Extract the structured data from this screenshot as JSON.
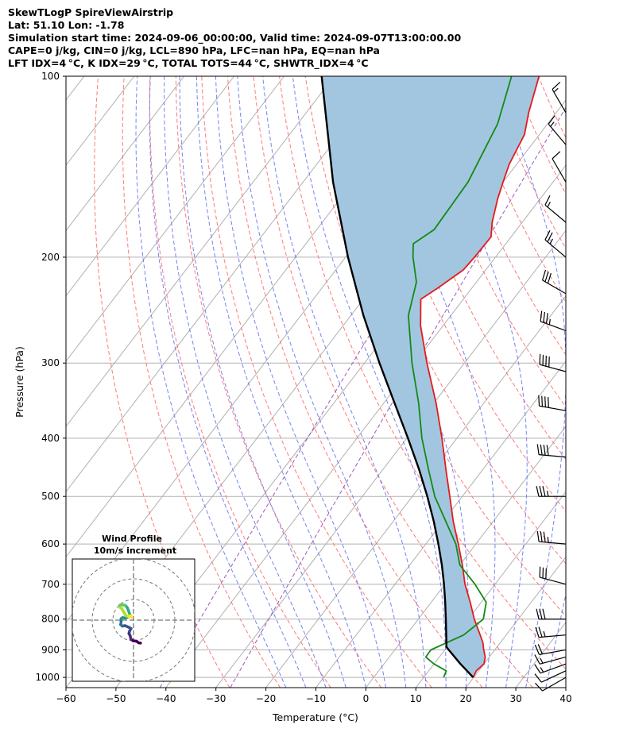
{
  "title_lines": [
    "SkewTLogP SpireViewAirstrip",
    "Lat: 51.10   Lon: -1.78",
    "Simulation start time: 2024-09-06_00:00:00, Valid time: 2024-09-07T13:00:00.00",
    "CAPE=0 j/kg, CIN=0 j/kg, LCL=890 hPa, LFC=nan hPa, EQ=nan hPa",
    "LFT IDX=4 °C, K IDX=29 °C, TOTAL TOTS=44 °C, SHWTR_IDX=4 °C"
  ],
  "chart_data": [
    {
      "type": "line",
      "subtype": "skew-t log-p",
      "xlabel": "Temperature (°C)",
      "ylabel": "Pressure (hPa)",
      "xlim": [
        -60,
        40
      ],
      "ylim": [
        1040,
        100
      ],
      "x_ticks": [
        -60,
        -50,
        -40,
        -30,
        -20,
        -10,
        0,
        10,
        20,
        30,
        40
      ],
      "x_tick_labels": [
        "−60",
        "−50",
        "−40",
        "−30",
        "−20",
        "−10",
        "0",
        "10",
        "20",
        "30",
        "40"
      ],
      "y_ticks": [
        1000,
        900,
        800,
        700,
        600,
        500,
        400,
        300,
        200,
        100
      ],
      "y_tick_labels": [
        "1000",
        "900",
        "800",
        "700",
        "600",
        "500",
        "400",
        "300",
        "200",
        "100"
      ],
      "grid": true,
      "colors": {
        "temperature": "#e41a1c",
        "dewpoint": "#138a13",
        "parcel": "#000000",
        "fill": "#a3c6e0",
        "dry_adiabat": "#ff6a6a",
        "moist_adiabat": "#6677ee",
        "mixing_ratio": "#9b59b6",
        "isotherm": "#b0b0b0"
      },
      "series": [
        {
          "name": "Temperature",
          "points": [
            {
              "p": 1000,
              "t": 19.9
            },
            {
              "p": 975,
              "t": 19.5
            },
            {
              "p": 950,
              "t": 20.0
            },
            {
              "p": 925,
              "t": 19.2
            },
            {
              "p": 900,
              "t": 17.8
            },
            {
              "p": 875,
              "t": 16.5
            },
            {
              "p": 850,
              "t": 14.8
            },
            {
              "p": 800,
              "t": 11.2
            },
            {
              "p": 750,
              "t": 7.8
            },
            {
              "p": 700,
              "t": 4.0
            },
            {
              "p": 650,
              "t": 0.5
            },
            {
              "p": 600,
              "t": -3.5
            },
            {
              "p": 550,
              "t": -8.0
            },
            {
              "p": 500,
              "t": -12.5
            },
            {
              "p": 450,
              "t": -17.5
            },
            {
              "p": 400,
              "t": -23.0
            },
            {
              "p": 350,
              "t": -29.5
            },
            {
              "p": 300,
              "t": -37.5
            },
            {
              "p": 260,
              "t": -44.5
            },
            {
              "p": 235,
              "t": -48.5
            },
            {
              "p": 225,
              "t": -46.8
            },
            {
              "p": 210,
              "t": -44.5
            },
            {
              "p": 200,
              "t": -44.2
            },
            {
              "p": 185,
              "t": -44.0
            },
            {
              "p": 175,
              "t": -46.0
            },
            {
              "p": 160,
              "t": -48.5
            },
            {
              "p": 150,
              "t": -50.0
            },
            {
              "p": 140,
              "t": -51.5
            },
            {
              "p": 125,
              "t": -53.0
            },
            {
              "p": 115,
              "t": -55.5
            },
            {
              "p": 100,
              "t": -59.0
            }
          ]
        },
        {
          "name": "Dewpoint",
          "points": [
            {
              "p": 1000,
              "t": 14.0
            },
            {
              "p": 975,
              "t": 13.5
            },
            {
              "p": 950,
              "t": 10.0
            },
            {
              "p": 925,
              "t": 7.3
            },
            {
              "p": 900,
              "t": 7.2
            },
            {
              "p": 850,
              "t": 11.5
            },
            {
              "p": 800,
              "t": 13.0
            },
            {
              "p": 750,
              "t": 11.0
            },
            {
              "p": 700,
              "t": 6.0
            },
            {
              "p": 650,
              "t": 0.0
            },
            {
              "p": 600,
              "t": -4.0
            },
            {
              "p": 550,
              "t": -9.5
            },
            {
              "p": 500,
              "t": -15.5
            },
            {
              "p": 450,
              "t": -21.0
            },
            {
              "p": 400,
              "t": -27.0
            },
            {
              "p": 350,
              "t": -33.0
            },
            {
              "p": 300,
              "t": -40.5
            },
            {
              "p": 250,
              "t": -48.5
            },
            {
              "p": 220,
              "t": -52.0
            },
            {
              "p": 200,
              "t": -56.5
            },
            {
              "p": 190,
              "t": -58.5
            },
            {
              "p": 180,
              "t": -56.5
            },
            {
              "p": 150,
              "t": -57.0
            },
            {
              "p": 120,
              "t": -60.0
            },
            {
              "p": 100,
              "t": -64.5
            }
          ]
        },
        {
          "name": "Parcel",
          "points": [
            {
              "p": 1000,
              "t": 19.9
            },
            {
              "p": 950,
              "t": 15.3
            },
            {
              "p": 900,
              "t": 10.8
            },
            {
              "p": 890,
              "t": 9.9
            },
            {
              "p": 850,
              "t": 8.0
            },
            {
              "p": 800,
              "t": 5.5
            },
            {
              "p": 750,
              "t": 2.8
            },
            {
              "p": 700,
              "t": -0.2
            },
            {
              "p": 650,
              "t": -3.6
            },
            {
              "p": 600,
              "t": -7.5
            },
            {
              "p": 550,
              "t": -11.9
            },
            {
              "p": 500,
              "t": -17.0
            },
            {
              "p": 450,
              "t": -22.9
            },
            {
              "p": 400,
              "t": -29.8
            },
            {
              "p": 350,
              "t": -37.8
            },
            {
              "p": 300,
              "t": -47.0
            },
            {
              "p": 250,
              "t": -57.5
            },
            {
              "p": 200,
              "t": -69.5
            },
            {
              "p": 150,
              "t": -84.0
            },
            {
              "p": 100,
              "t": -102.5
            }
          ]
        }
      ],
      "wind_barbs": [
        {
          "p": 1000,
          "dir": 240,
          "kt": 10
        },
        {
          "p": 975,
          "dir": 245,
          "kt": 12
        },
        {
          "p": 950,
          "dir": 250,
          "kt": 15
        },
        {
          "p": 925,
          "dir": 255,
          "kt": 15
        },
        {
          "p": 900,
          "dir": 260,
          "kt": 20
        },
        {
          "p": 850,
          "dir": 265,
          "kt": 25
        },
        {
          "p": 800,
          "dir": 270,
          "kt": 30
        },
        {
          "p": 700,
          "dir": 285,
          "kt": 30
        },
        {
          "p": 600,
          "dir": 275,
          "kt": 35
        },
        {
          "p": 500,
          "dir": 270,
          "kt": 35
        },
        {
          "p": 430,
          "dir": 275,
          "kt": 40
        },
        {
          "p": 360,
          "dir": 280,
          "kt": 40
        },
        {
          "p": 310,
          "dir": 285,
          "kt": 40
        },
        {
          "p": 265,
          "dir": 290,
          "kt": 35
        },
        {
          "p": 230,
          "dir": 300,
          "kt": 30
        },
        {
          "p": 200,
          "dir": 310,
          "kt": 25
        },
        {
          "p": 175,
          "dir": 310,
          "kt": 15
        },
        {
          "p": 150,
          "dir": 330,
          "kt": 10
        },
        {
          "p": 130,
          "dir": 320,
          "kt": 15
        },
        {
          "p": 115,
          "dir": 330,
          "kt": 15
        }
      ]
    },
    {
      "type": "scatter",
      "subtype": "hodograph",
      "title": "Wind Profile",
      "subtitle": "10m/s increment",
      "ring_increment_ms": 10,
      "rings": 3,
      "colormap": "viridis",
      "points": [
        {
          "u": 3.4,
          "v": -11.1
        },
        {
          "u": 2.6,
          "v": -11.0
        },
        {
          "u": 1.3,
          "v": -10.2
        },
        {
          "u": -0.2,
          "v": -10.0
        },
        {
          "u": -1.3,
          "v": -9.2
        },
        {
          "u": -1.6,
          "v": -7.6
        },
        {
          "u": -2.2,
          "v": -6.5
        },
        {
          "u": -1.9,
          "v": -5.3
        },
        {
          "u": -1.2,
          "v": -4.1
        },
        {
          "u": -2.2,
          "v": -3.5
        },
        {
          "u": -4.1,
          "v": -2.7
        },
        {
          "u": -5.4,
          "v": -2.9
        },
        {
          "u": -6.2,
          "v": -2.2
        },
        {
          "u": -6.0,
          "v": -0.8
        },
        {
          "u": -6.0,
          "v": 0.7
        },
        {
          "u": -5.3,
          "v": 1.2
        },
        {
          "u": -3.8,
          "v": 1.0
        },
        {
          "u": -2.3,
          "v": 1.7
        },
        {
          "u": -1.7,
          "v": 2.5
        },
        {
          "u": -2.4,
          "v": 4.5
        },
        {
          "u": -3.0,
          "v": 6.0
        },
        {
          "u": -4.0,
          "v": 7.2
        },
        {
          "u": -4.8,
          "v": 7.3
        },
        {
          "u": -6.2,
          "v": 7.4
        },
        {
          "u": -6.8,
          "v": 7.0
        },
        {
          "u": -6.5,
          "v": 6.2
        },
        {
          "u": -5.7,
          "v": 5.6
        },
        {
          "u": -3.6,
          "v": 2.0
        },
        {
          "u": -2.4,
          "v": 1.8
        },
        {
          "u": -1.2,
          "v": 2.2
        },
        {
          "u": -0.8,
          "v": 1.4
        },
        {
          "u": -1.1,
          "v": 2.2
        }
      ]
    }
  ]
}
